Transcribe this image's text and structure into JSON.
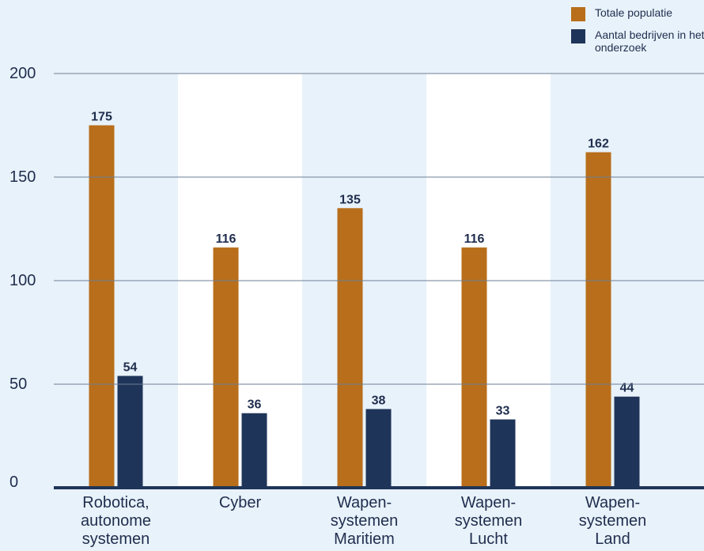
{
  "chart_data": {
    "type": "bar",
    "categories": [
      "Robotica,\nautonome\nsystemen",
      "Cyber",
      "Wapen-\nsystemen\nMaritiem",
      "Wapen-\nsystemen\nLucht",
      "Wapen-\nsystemen\nLand"
    ],
    "series": [
      {
        "name": "Totale populatie",
        "values": [
          175,
          116,
          135,
          116,
          162
        ],
        "color": "#b86e1a"
      },
      {
        "name": "Aantal bedrijven in het onderzoek",
        "values": [
          54,
          36,
          38,
          33,
          44
        ],
        "color": "#1f3459"
      }
    ],
    "ylim": [
      0,
      200
    ],
    "yticks": [
      0,
      50,
      100,
      150,
      200
    ],
    "grid": true,
    "legend_position": "top-right",
    "band_colors": [
      "#e8f2fa",
      "#ffffff"
    ],
    "axis_color": "#1f3459",
    "text_color": "#1f2d4e"
  }
}
